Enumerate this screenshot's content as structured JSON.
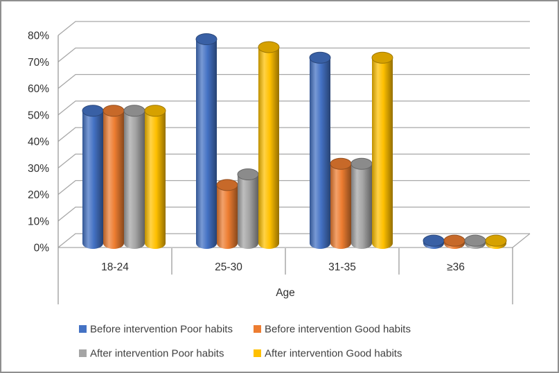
{
  "window": {
    "background": "#ffffff",
    "border_color": "#8f8f8f"
  },
  "chart_data": {
    "type": "bar",
    "style": "3d-cylinder-clustered",
    "title": "",
    "xlabel": "Age",
    "ylabel": "",
    "categories": [
      "18-24",
      "25-30",
      "31-35",
      "≥36"
    ],
    "series": [
      {
        "name": "Before intervention Poor habits",
        "color": "#4472C4",
        "values": [
          50,
          77,
          70,
          1
        ]
      },
      {
        "name": "Before intervention Good habits",
        "color": "#ED7D31",
        "values": [
          50,
          22,
          30,
          1
        ]
      },
      {
        "name": "After intervention Poor habits",
        "color": "#A5A5A5",
        "values": [
          50,
          26,
          30,
          1
        ]
      },
      {
        "name": "After intervention Good habits",
        "color": "#FFC000",
        "values": [
          50,
          74,
          70,
          1
        ]
      }
    ],
    "ylim": [
      0,
      80
    ],
    "ytick_step": 10,
    "yticks": [
      "0%",
      "10%",
      "20%",
      "30%",
      "40%",
      "50%",
      "60%",
      "70%",
      "80%"
    ],
    "grid": true,
    "gridline_color": "#a6a6a6",
    "axis_line_color": "#9a9a9a",
    "tick_label_color": "#2e2e2e",
    "legend_position": "bottom",
    "legend_text_color": "#3f3f3f"
  }
}
